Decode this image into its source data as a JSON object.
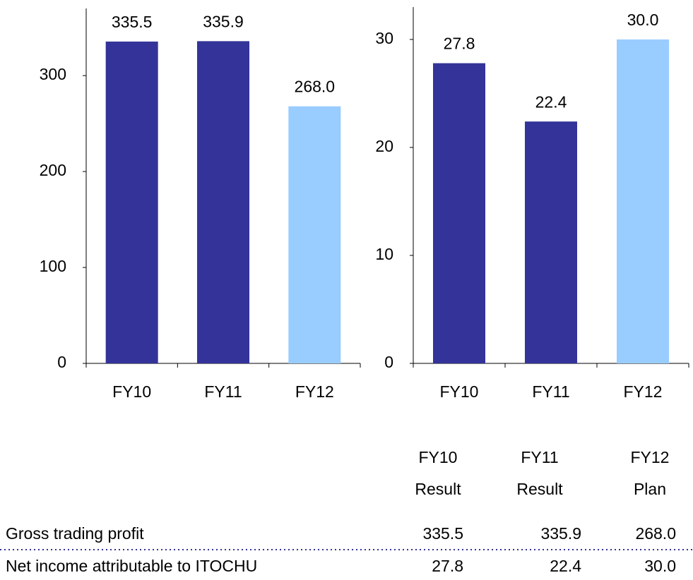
{
  "chart_data": [
    {
      "type": "bar",
      "categories": [
        "FY10",
        "FY11",
        "FY12"
      ],
      "values": [
        335.5,
        335.9,
        268
      ],
      "value_labels": [
        "335.5",
        "335.9",
        "268.0"
      ],
      "colors": [
        "#333399",
        "#333399",
        "#99ccff"
      ],
      "ylim": [
        0,
        370
      ],
      "yticks": [
        0,
        100,
        200,
        300
      ],
      "grid": false
    },
    {
      "type": "bar",
      "categories": [
        "FY10",
        "FY11",
        "FY12"
      ],
      "values": [
        27.8,
        22.4,
        30
      ],
      "value_labels": [
        "27.8",
        "22.4",
        "30.0"
      ],
      "colors": [
        "#333399",
        "#333399",
        "#99ccff"
      ],
      "ylim": [
        0,
        33
      ],
      "yticks": [
        0,
        10,
        20,
        30
      ],
      "grid": false
    }
  ],
  "table": {
    "header": [
      [
        "FY10",
        "Result"
      ],
      [
        "FY11",
        "Result"
      ],
      [
        "FY12",
        "Plan"
      ]
    ],
    "rows": [
      {
        "label": "Gross trading profit",
        "values": [
          "335.5",
          "335.9",
          "268.0"
        ]
      },
      {
        "label": "Net income attributable to ITOCHU",
        "values": [
          "27.8",
          "22.4",
          "30.0"
        ]
      }
    ]
  }
}
